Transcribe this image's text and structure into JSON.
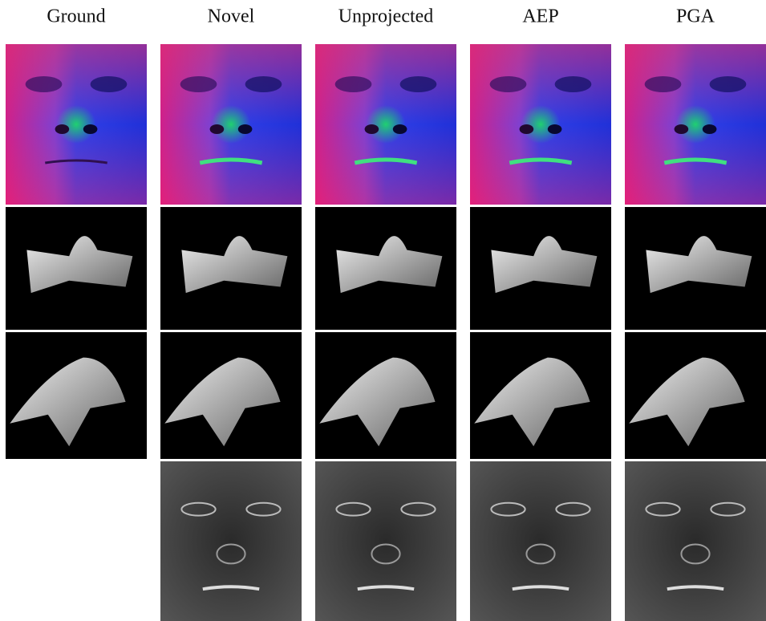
{
  "header": {
    "columns": [
      "Ground",
      "Novel",
      "Unprojected",
      "AEP",
      "PGA"
    ]
  }
}
